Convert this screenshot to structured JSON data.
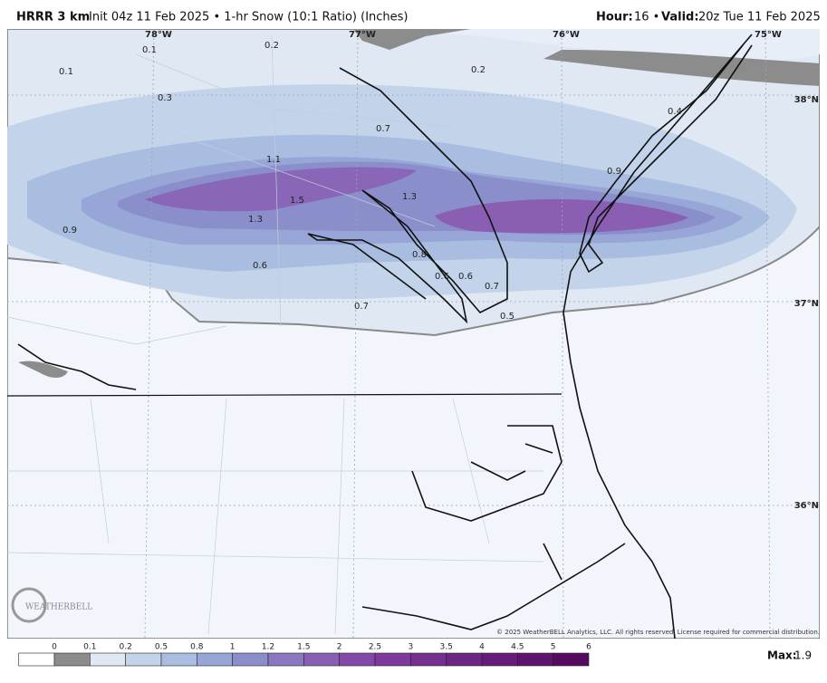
{
  "header": {
    "model": "HRRR 3 km",
    "description": "Init 04z 11 Feb 2025 • 1-hr Snow (10:1 Ratio) (Inches)",
    "hour_label": "Hour:",
    "hour": "16 •",
    "valid_label": "Valid:",
    "valid": "20z Tue 11 Feb 2025"
  },
  "map": {
    "longitudes": [
      "78°W",
      "77°W",
      "76°W",
      "75°W"
    ],
    "latitudes": [
      "38°N",
      "37°N",
      "36°N"
    ],
    "contour_labels": [
      0.1,
      0.2,
      0.1,
      0.3,
      0.7,
      0.2,
      0.4,
      1.1,
      1.5,
      1.3,
      1.3,
      0.9,
      0.9,
      0.8,
      0.6,
      0.6,
      0.6,
      0.7,
      0.7,
      0.5
    ],
    "copyright": "© 2025 WeatherBELL Analytics, LLC. All rights reserved. License required for commercial distribution.",
    "logo": "WEATHERBELL"
  },
  "colorbar": {
    "ticks": [
      0,
      0.1,
      0.2,
      0.5,
      0.8,
      1,
      1.2,
      1.5,
      2,
      2.5,
      3,
      3.5,
      4,
      4.5,
      5,
      6
    ],
    "colors": [
      "#ffffff",
      "#8c8c8c",
      "#dfe8f3",
      "#c3d4ea",
      "#a9bde0",
      "#97a6d6",
      "#8a8fcb",
      "#8a77bf",
      "#8a5fb3",
      "#8349a6",
      "#7d3a9b",
      "#76308f",
      "#6e2684",
      "#661c78",
      "#5e136c",
      "#560a60"
    ],
    "max_label": "Max:",
    "max": 1.9
  }
}
